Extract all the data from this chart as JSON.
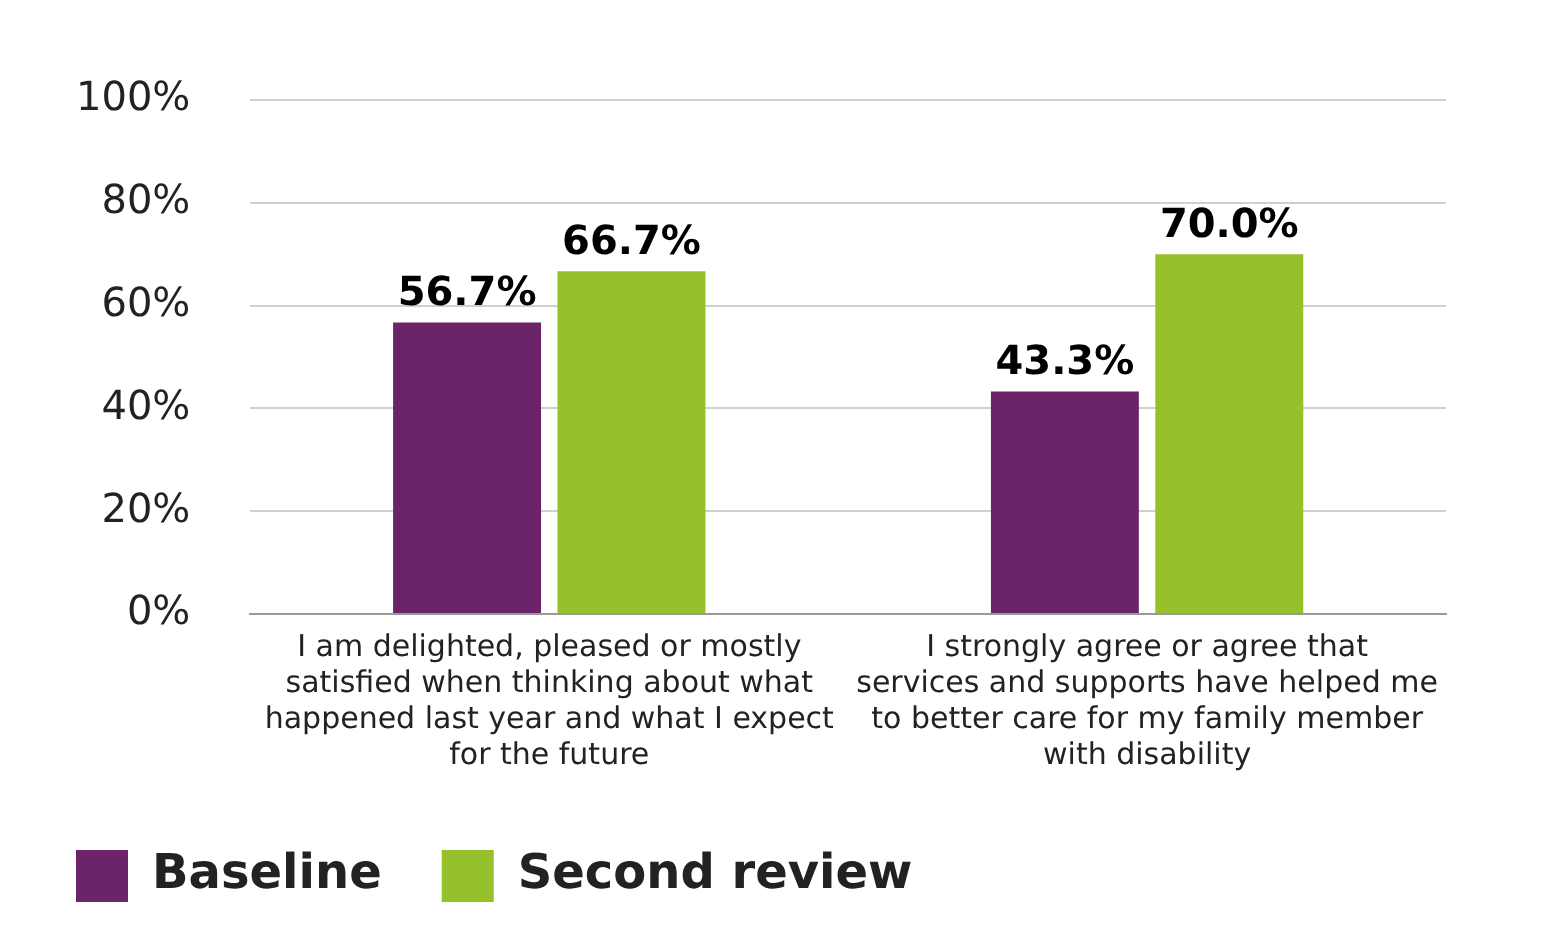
{
  "chart_data": {
    "type": "bar",
    "categories": [
      "I am delighted, pleased or mostly satisfied when thinking about what happened last year and what I expect for the future",
      "I strongly agree or agree that services and supports have helped me to better care for my family member with disability"
    ],
    "series": [
      {
        "name": "Baseline",
        "color": "#6b2469",
        "values": [
          56.7,
          43.3
        ],
        "value_labels": [
          "56.7%",
          "43.3%"
        ]
      },
      {
        "name": "Second review",
        "color": "#96c12b",
        "values": [
          66.7,
          70.0
        ],
        "value_labels": [
          "66.7%",
          "70.0%"
        ]
      }
    ],
    "ylim": [
      0,
      100
    ],
    "yticks": [
      {
        "value": 0,
        "label": "0%"
      },
      {
        "value": 20,
        "label": "20%"
      },
      {
        "value": 40,
        "label": "40%"
      },
      {
        "value": 60,
        "label": "60%"
      },
      {
        "value": 80,
        "label": "80%"
      },
      {
        "value": 100,
        "label": "100%"
      }
    ],
    "grid": "y",
    "legend": "bottom left"
  }
}
